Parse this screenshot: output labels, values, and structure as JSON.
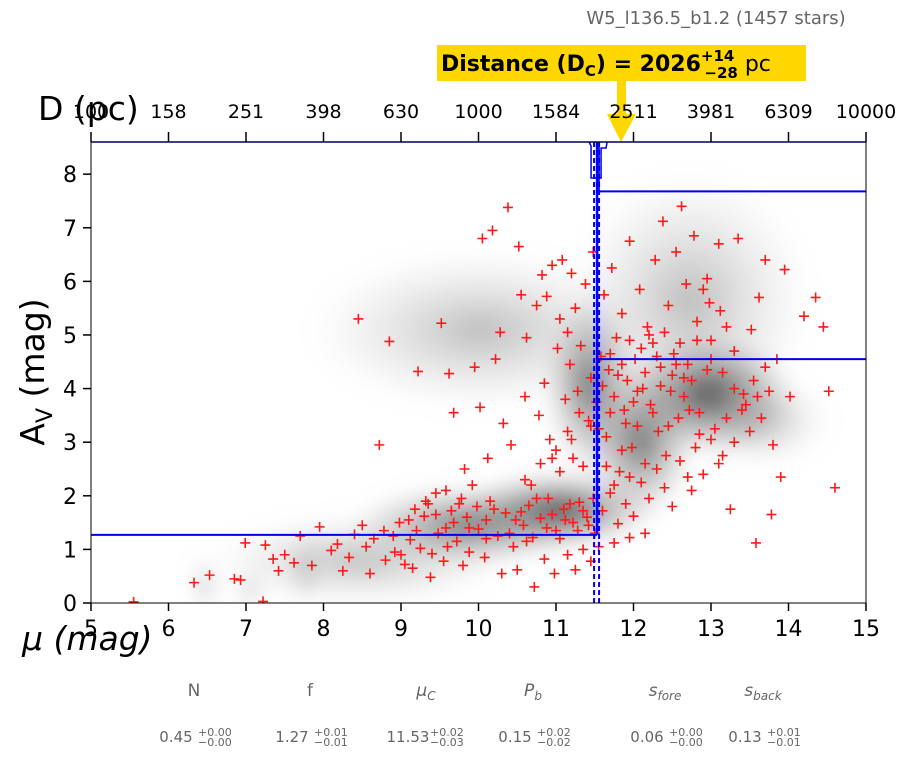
{
  "chart_data": {
    "type": "scatter",
    "title": "W5_l136.5_b1.2 (1457 stars)",
    "annotation": {
      "prefix": "Distance (D",
      "sub": "C",
      "middle": ") = 2026",
      "sup": "+14",
      "subscript": "−28",
      "unit": " pc"
    },
    "xlabel": "μ (mag)",
    "ylabel": "A",
    "ylabel_sub": "V",
    "ylabel_suffix": " (mag)",
    "top_label": "D (pc)",
    "xlim": [
      5,
      15
    ],
    "ylim": [
      0,
      8.6
    ],
    "x_ticks": [
      5,
      6,
      7,
      8,
      9,
      10,
      11,
      12,
      13,
      14,
      15
    ],
    "y_ticks": [
      0,
      1,
      2,
      3,
      4,
      5,
      6,
      7,
      8
    ],
    "top_ticks": [
      "100",
      "158",
      "251",
      "398",
      "630",
      "1000",
      "1584",
      "2511",
      "3981",
      "6309",
      "10000"
    ],
    "distance_modulus": 11.53,
    "foreground_av": 1.27,
    "background_av_line": 4.55,
    "background_av_upper": 7.68,
    "series": [
      {
        "name": "stars",
        "marker": "+",
        "color": "#ff1a1a",
        "points": [
          [
            5.55,
            0.02
          ],
          [
            6.33,
            0.38
          ],
          [
            6.53,
            0.52
          ],
          [
            6.85,
            0.45
          ],
          [
            6.93,
            0.43
          ],
          [
            6.99,
            1.12
          ],
          [
            7.22,
            0.03
          ],
          [
            7.25,
            1.08
          ],
          [
            7.35,
            0.82
          ],
          [
            7.42,
            0.6
          ],
          [
            7.5,
            0.9
          ],
          [
            7.62,
            0.75
          ],
          [
            7.7,
            1.25
          ],
          [
            7.85,
            0.7
          ],
          [
            7.95,
            1.42
          ],
          [
            8.1,
            0.98
          ],
          [
            8.18,
            1.1
          ],
          [
            8.25,
            0.6
          ],
          [
            8.33,
            0.85
          ],
          [
            8.4,
            1.28
          ],
          [
            8.45,
            5.3
          ],
          [
            8.55,
            1.05
          ],
          [
            8.6,
            0.55
          ],
          [
            8.72,
            2.95
          ],
          [
            8.78,
            1.35
          ],
          [
            8.85,
            4.88
          ],
          [
            8.92,
            0.95
          ],
          [
            8.98,
            1.5
          ],
          [
            9.05,
            0.72
          ],
          [
            9.12,
            1.18
          ],
          [
            9.22,
            4.32
          ],
          [
            9.3,
            1.62
          ],
          [
            9.38,
            0.48
          ],
          [
            9.45,
            2.05
          ],
          [
            9.52,
            5.22
          ],
          [
            9.58,
            1.4
          ],
          [
            9.62,
            4.28
          ],
          [
            9.68,
            3.55
          ],
          [
            9.75,
            1.85
          ],
          [
            9.82,
            2.5
          ],
          [
            9.88,
            0.95
          ],
          [
            9.95,
            4.4
          ],
          [
            10.02,
            3.65
          ],
          [
            10.05,
            6.8
          ],
          [
            10.1,
            1.2
          ],
          [
            10.12,
            2.7
          ],
          [
            10.18,
            6.95
          ],
          [
            10.22,
            4.55
          ],
          [
            10.28,
            5.05
          ],
          [
            10.32,
            3.35
          ],
          [
            10.38,
            7.38
          ],
          [
            10.42,
            2.95
          ],
          [
            10.48,
            1.55
          ],
          [
            10.52,
            6.65
          ],
          [
            10.55,
            5.75
          ],
          [
            10.6,
            3.85
          ],
          [
            10.62,
            4.95
          ],
          [
            10.68,
            2.2
          ],
          [
            10.72,
            0.3
          ],
          [
            10.75,
            5.55
          ],
          [
            10.78,
            3.5
          ],
          [
            10.82,
            6.12
          ],
          [
            10.85,
            4.1
          ],
          [
            10.88,
            5.72
          ],
          [
            10.92,
            3.05
          ],
          [
            10.95,
            6.3
          ],
          [
            10.98,
            0.55
          ],
          [
            11.02,
            4.75
          ],
          [
            11.05,
            5.3
          ],
          [
            11.08,
            6.4
          ],
          [
            11.12,
            3.8
          ],
          [
            11.15,
            5.05
          ],
          [
            11.18,
            4.45
          ],
          [
            11.2,
            6.15
          ],
          [
            11.22,
            2.7
          ],
          [
            11.25,
            5.5
          ],
          [
            11.28,
            3.95
          ],
          [
            11.32,
            4.8
          ],
          [
            11.35,
            1.0
          ],
          [
            11.38,
            5.95
          ],
          [
            11.42,
            3.4
          ],
          [
            11.45,
            4.2
          ],
          [
            11.48,
            6.55
          ],
          [
            11.52,
            3.75
          ],
          [
            11.58,
            4.6
          ],
          [
            11.62,
            5.75
          ],
          [
            11.65,
            3.1
          ],
          [
            11.68,
            4.35
          ],
          [
            11.72,
            6.25
          ],
          [
            11.75,
            3.85
          ],
          [
            11.78,
            4.95
          ],
          [
            11.82,
            2.45
          ],
          [
            11.85,
            5.4
          ],
          [
            11.88,
            3.6
          ],
          [
            11.92,
            4.15
          ],
          [
            11.95,
            6.75
          ],
          [
            11.98,
            2.9
          ],
          [
            12.02,
            4.55
          ],
          [
            12.05,
            3.3
          ],
          [
            12.08,
            5.85
          ],
          [
            12.12,
            4.0
          ],
          [
            12.15,
            2.6
          ],
          [
            12.18,
            5.15
          ],
          [
            12.22,
            3.7
          ],
          [
            12.25,
            4.85
          ],
          [
            12.28,
            6.4
          ],
          [
            12.32,
            3.2
          ],
          [
            12.35,
            4.4
          ],
          [
            12.38,
            7.12
          ],
          [
            12.42,
            2.75
          ],
          [
            12.45,
            5.55
          ],
          [
            12.48,
            3.95
          ],
          [
            12.52,
            4.65
          ],
          [
            12.55,
            6.55
          ],
          [
            12.58,
            3.45
          ],
          [
            12.62,
            7.4
          ],
          [
            12.65,
            4.2
          ],
          [
            12.68,
            5.95
          ],
          [
            12.72,
            3.6
          ],
          [
            12.75,
            2.1
          ],
          [
            12.78,
            6.85
          ],
          [
            12.82,
            4.9
          ],
          [
            12.85,
            3.15
          ],
          [
            12.9,
            5.85
          ],
          [
            12.95,
            6.05
          ],
          [
            13.0,
            4.55
          ],
          [
            13.05,
            3.25
          ],
          [
            13.1,
            6.7
          ],
          [
            13.15,
            2.75
          ],
          [
            13.2,
            5.15
          ],
          [
            13.25,
            1.75
          ],
          [
            13.3,
            4.0
          ],
          [
            13.35,
            6.8
          ],
          [
            13.45,
            3.7
          ],
          [
            13.52,
            5.1
          ],
          [
            13.58,
            1.12
          ],
          [
            13.62,
            5.7
          ],
          [
            13.7,
            6.4
          ],
          [
            13.78,
            1.65
          ],
          [
            13.85,
            4.55
          ],
          [
            13.9,
            2.35
          ],
          [
            13.95,
            6.22
          ],
          [
            14.02,
            3.85
          ],
          [
            14.2,
            5.35
          ],
          [
            14.35,
            5.7
          ],
          [
            14.45,
            5.15
          ],
          [
            14.52,
            3.95
          ],
          [
            14.6,
            2.15
          ],
          [
            9.1,
            1.55
          ],
          [
            9.25,
            1.02
          ],
          [
            9.35,
            1.85
          ],
          [
            9.48,
            1.3
          ],
          [
            9.55,
            0.78
          ],
          [
            9.65,
            1.72
          ],
          [
            9.72,
            1.15
          ],
          [
            9.85,
            1.6
          ],
          [
            9.92,
            2.2
          ],
          [
            10.0,
            1.38
          ],
          [
            10.08,
            0.85
          ],
          [
            10.15,
            1.9
          ],
          [
            10.25,
            1.25
          ],
          [
            10.35,
            1.68
          ],
          [
            10.45,
            1.05
          ],
          [
            10.58,
            1.45
          ],
          [
            10.65,
            1.82
          ],
          [
            10.7,
            1.22
          ],
          [
            10.8,
            1.58
          ],
          [
            10.9,
            1.95
          ],
          [
            11.0,
            1.35
          ],
          [
            11.1,
            1.75
          ],
          [
            11.22,
            1.5
          ],
          [
            11.3,
            1.88
          ],
          [
            11.4,
            1.6
          ],
          [
            11.5,
            1.3
          ],
          [
            11.6,
            1.72
          ],
          [
            11.7,
            2.05
          ],
          [
            11.8,
            1.48
          ],
          [
            11.9,
            1.85
          ],
          [
            12.0,
            1.62
          ],
          [
            12.1,
            2.25
          ],
          [
            12.2,
            1.95
          ],
          [
            12.3,
            2.5
          ],
          [
            12.4,
            2.15
          ],
          [
            12.5,
            1.8
          ],
          [
            12.6,
            2.65
          ],
          [
            12.7,
            2.35
          ],
          [
            12.8,
            2.9
          ],
          [
            12.9,
            2.4
          ],
          [
            13.0,
            3.05
          ],
          [
            13.1,
            2.6
          ],
          [
            13.2,
            3.45
          ],
          [
            13.3,
            3.0
          ],
          [
            13.4,
            3.6
          ],
          [
            13.5,
            3.2
          ],
          [
            13.6,
            3.85
          ],
          [
            13.7,
            4.4
          ],
          [
            13.8,
            2.95
          ],
          [
            12.05,
            3.95
          ],
          [
            12.15,
            4.3
          ],
          [
            12.25,
            3.55
          ],
          [
            12.35,
            4.05
          ],
          [
            12.45,
            3.3
          ],
          [
            12.55,
            4.45
          ],
          [
            12.65,
            3.85
          ],
          [
            12.75,
            4.15
          ],
          [
            12.85,
            3.55
          ],
          [
            12.95,
            4.35
          ],
          [
            11.6,
            4.05
          ],
          [
            11.7,
            3.55
          ],
          [
            11.8,
            4.25
          ],
          [
            11.9,
            3.35
          ],
          [
            12.0,
            3.75
          ],
          [
            11.65,
            2.55
          ],
          [
            11.75,
            2.2
          ],
          [
            11.85,
            2.85
          ],
          [
            11.95,
            2.35
          ],
          [
            11.55,
            3.25
          ],
          [
            11.7,
            4.65
          ],
          [
            11.85,
            4.45
          ],
          [
            11.95,
            4.9
          ],
          [
            12.1,
            4.75
          ],
          [
            12.2,
            5.0
          ],
          [
            12.3,
            4.6
          ],
          [
            12.4,
            5.05
          ],
          [
            12.5,
            4.25
          ],
          [
            12.6,
            4.85
          ],
          [
            12.7,
            4.45
          ],
          [
            8.5,
            1.45
          ],
          [
            8.65,
            1.2
          ],
          [
            8.8,
            0.8
          ],
          [
            8.9,
            1.25
          ],
          [
            9.0,
            0.9
          ],
          [
            9.15,
            0.65
          ],
          [
            9.2,
            1.35
          ],
          [
            9.4,
            0.92
          ],
          [
            9.6,
            1.05
          ],
          [
            9.8,
            0.7
          ],
          [
            10.3,
            0.55
          ],
          [
            10.5,
            0.62
          ],
          [
            10.85,
            0.82
          ],
          [
            11.15,
            0.9
          ],
          [
            11.45,
            0.78
          ],
          [
            11.25,
            0.62
          ],
          [
            11.55,
            1.05
          ],
          [
            11.75,
            1.12
          ],
          [
            11.95,
            1.22
          ],
          [
            12.15,
            1.3
          ],
          [
            10.4,
            1.3
          ],
          [
            10.55,
            1.7
          ],
          [
            10.62,
            1.15
          ],
          [
            10.75,
            1.95
          ],
          [
            10.88,
            1.4
          ],
          [
            10.95,
            1.65
          ],
          [
            11.05,
            1.2
          ],
          [
            11.12,
            1.55
          ],
          [
            11.18,
            1.85
          ],
          [
            11.28,
            1.35
          ],
          [
            11.35,
            1.72
          ],
          [
            11.42,
            1.45
          ],
          [
            11.48,
            1.95
          ],
          [
            10.2,
            1.75
          ],
          [
            10.1,
            1.55
          ],
          [
            9.98,
            1.8
          ],
          [
            9.88,
            1.4
          ],
          [
            9.78,
            1.95
          ],
          [
            9.68,
            1.5
          ],
          [
            9.58,
            2.1
          ],
          [
            9.45,
            1.65
          ],
          [
            9.32,
            1.9
          ],
          [
            9.18,
            1.75
          ],
          [
            10.6,
            2.3
          ],
          [
            10.8,
            2.6
          ],
          [
            11.0,
            2.85
          ],
          [
            11.2,
            3.05
          ],
          [
            11.35,
            2.55
          ],
          [
            11.45,
            3.3
          ],
          [
            11.3,
            3.55
          ],
          [
            11.15,
            3.2
          ],
          [
            11.05,
            2.45
          ],
          [
            10.95,
            2.7
          ],
          [
            13.0,
            4.9
          ],
          [
            13.15,
            4.3
          ],
          [
            13.3,
            4.7
          ],
          [
            13.42,
            3.9
          ],
          [
            13.55,
            4.15
          ],
          [
            13.65,
            3.45
          ],
          [
            13.75,
            3.95
          ],
          [
            13.12,
            5.45
          ],
          [
            12.98,
            5.6
          ],
          [
            12.82,
            5.25
          ]
        ]
      }
    ]
  },
  "params": [
    {
      "name": "N",
      "sub": "",
      "val": "0.45",
      "up": "+0.00",
      "lo": "−0.00"
    },
    {
      "name": "f",
      "sub": "",
      "val": "1.27",
      "up": "+0.01",
      "lo": "−0.01"
    },
    {
      "name": "μ",
      "sub": "C",
      "val": "11.53",
      "up": "+0.02",
      "lo": "−0.03"
    },
    {
      "name": "P",
      "sub": "b",
      "val": "0.15",
      "up": "+0.02",
      "lo": "−0.02"
    },
    {
      "name": "s",
      "sub": "fore",
      "val": "0.06",
      "up": "+0.00",
      "lo": "−0.00"
    },
    {
      "name": "s",
      "sub": "back",
      "val": "0.13",
      "up": "+0.01",
      "lo": "−0.01"
    }
  ],
  "colors": {
    "marker": "#ff1a1a",
    "fit_line": "#0000ee",
    "annotation_bg": "#ffd700"
  }
}
